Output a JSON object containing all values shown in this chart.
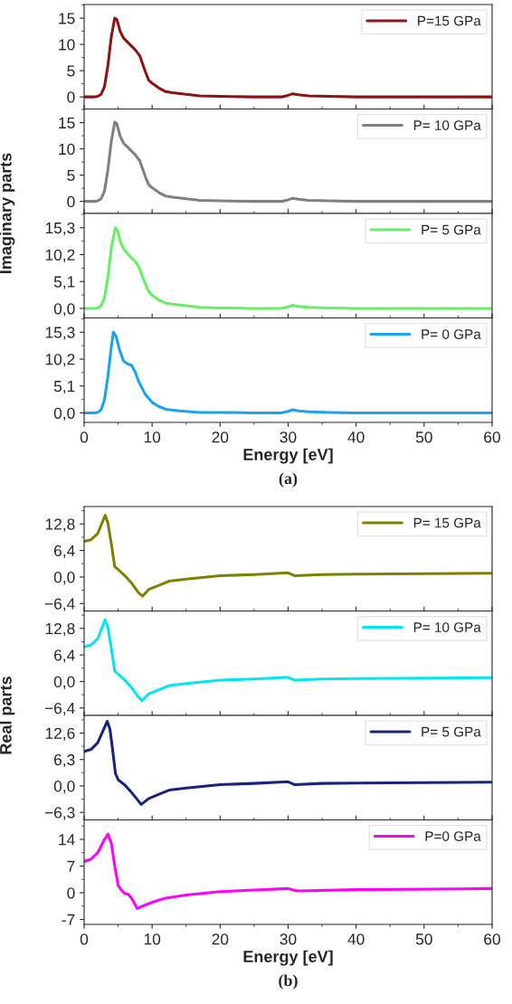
{
  "chart_data": [
    {
      "type": "line",
      "x": [
        0,
        1.5,
        2,
        2.5,
        3,
        3.5,
        4,
        4.5,
        4.8,
        5.3,
        5.8,
        6.5,
        7.5,
        8.2,
        9,
        9.5,
        10,
        11,
        12,
        13,
        15,
        17,
        20,
        25,
        29,
        30,
        30.7,
        31.5,
        33,
        36,
        40,
        60
      ],
      "series": [
        {
          "name": "P=15 GPa",
          "color": "#8b1414",
          "values": [
            0,
            0,
            0.1,
            0.5,
            2,
            6,
            11.5,
            15,
            14.8,
            12.5,
            11.2,
            10.3,
            9,
            7.8,
            4.8,
            3.2,
            2.6,
            1.7,
            1,
            0.8,
            0.5,
            0.2,
            0.1,
            0,
            0,
            0.3,
            0.6,
            0.4,
            0.2,
            0.1,
            0,
            0
          ]
        }
      ],
      "ylim": [
        -2.3,
        17.6
      ],
      "yticks": [
        0,
        5,
        10,
        15
      ],
      "xlim": [
        0,
        60
      ],
      "xticks": [
        0,
        10,
        20,
        30,
        40,
        50,
        60
      ],
      "tick_labels": "y",
      "legend": "top right",
      "grid": false
    },
    {
      "type": "line",
      "x": [
        0,
        1.5,
        2,
        2.5,
        3,
        3.5,
        4,
        4.5,
        4.8,
        5.3,
        5.8,
        6.5,
        7.5,
        8.2,
        9,
        9.5,
        10,
        11,
        12,
        13,
        15,
        17,
        20,
        25,
        29,
        30,
        30.7,
        31.5,
        33,
        36,
        40,
        60
      ],
      "series": [
        {
          "name": "P= 10 GPa",
          "color": "#808080",
          "values": [
            0,
            0,
            0.1,
            0.5,
            2,
            6,
            11.5,
            15.1,
            14.8,
            12.4,
            11.1,
            10.2,
            8.9,
            7.7,
            4.7,
            3.2,
            2.6,
            1.7,
            1,
            0.8,
            0.5,
            0.2,
            0.1,
            0,
            0,
            0.3,
            0.6,
            0.4,
            0.2,
            0.1,
            0,
            0
          ]
        }
      ],
      "ylabel": "Imaginary parts",
      "ylim": [
        -2.3,
        17.6
      ],
      "yticks": [
        0,
        5,
        10,
        15
      ],
      "xlim": [
        0,
        60
      ],
      "xticks": [
        0,
        10,
        20,
        30,
        40,
        50,
        60
      ],
      "tick_labels": "y",
      "legend": "top right",
      "grid": false
    },
    {
      "type": "line",
      "x": [
        0,
        1.5,
        2,
        2.5,
        3,
        3.5,
        4,
        4.6,
        4.9,
        5.4,
        5.9,
        6.5,
        7.5,
        8,
        9,
        9.5,
        10,
        11,
        12,
        13,
        15,
        17,
        20,
        25,
        29,
        30,
        30.7,
        31.5,
        33,
        36,
        40,
        60
      ],
      "series": [
        {
          "name": "P= 5 GPa",
          "color": "#66ee66",
          "values": [
            0,
            0,
            0.1,
            0.5,
            2,
            6,
            11.5,
            15.3,
            14.8,
            12.4,
            11.1,
            10.2,
            8.9,
            8,
            4.7,
            3.2,
            2.5,
            1.6,
            1,
            0.8,
            0.5,
            0.2,
            0.1,
            0,
            0,
            0.3,
            0.6,
            0.4,
            0.2,
            0.1,
            0,
            0
          ]
        }
      ],
      "ylim": [
        -1.8,
        18
      ],
      "yticks": [
        {
          "value": 0,
          "label": "0,0"
        },
        {
          "value": 5.1,
          "label": "5,1"
        },
        {
          "value": 10.2,
          "label": "10,2"
        },
        {
          "value": 15.3,
          "label": "15,3"
        }
      ],
      "xlim": [
        0,
        60
      ],
      "xticks": [
        0,
        10,
        20,
        30,
        40,
        50,
        60
      ],
      "tick_labels": "y",
      "legend": "top right",
      "grid": false
    },
    {
      "type": "line",
      "x": [
        0,
        1.5,
        2,
        2.5,
        3,
        3.5,
        4,
        4.3,
        4.7,
        5.2,
        5.8,
        6.5,
        7,
        7.5,
        8,
        9,
        10,
        11,
        12,
        14,
        17,
        20,
        25,
        29,
        30,
        30.7,
        31.5,
        33,
        36,
        40,
        60
      ],
      "series": [
        {
          "name": "P= 0 GPa",
          "color": "#1aa3ee",
          "values": [
            0,
            0,
            0.1,
            0.6,
            2.5,
            7,
            12.5,
            15.3,
            14.5,
            12,
            9.8,
            9.2,
            9,
            7.8,
            6,
            3.5,
            2,
            1.2,
            0.7,
            0.4,
            0.1,
            0.1,
            0,
            0,
            0.3,
            0.6,
            0.4,
            0.2,
            0.1,
            0,
            0
          ]
        }
      ],
      "xlabel": "Energy [eV]",
      "annotations": [
        "(a)"
      ],
      "ylim": [
        -1.8,
        18
      ],
      "yticks": [
        {
          "value": 0,
          "label": "0,0"
        },
        {
          "value": 5.1,
          "label": "5,1"
        },
        {
          "value": 10.2,
          "label": "10,2"
        },
        {
          "value": 15.3,
          "label": "15,3"
        }
      ],
      "xlim": [
        0,
        60
      ],
      "xticks": [
        0,
        10,
        20,
        30,
        40,
        50,
        60
      ],
      "legend": "top right",
      "grid": false
    },
    {
      "type": "line",
      "x": [
        0,
        1,
        2,
        3.1,
        3.5,
        4,
        4.5,
        5,
        6,
        7,
        8,
        8.6,
        9.5,
        11,
        12.5,
        15,
        20,
        25,
        30,
        31,
        35,
        40,
        60
      ],
      "series": [
        {
          "name": "P= 15 GPa",
          "color": "#808000",
          "values": [
            8.6,
            9,
            10.5,
            14.9,
            13,
            8,
            2.5,
            1.8,
            0.3,
            -1.5,
            -3.8,
            -4.6,
            -3,
            -2,
            -1,
            -0.5,
            0.3,
            0.6,
            1,
            0.3,
            0.6,
            0.7,
            0.9
          ]
        }
      ],
      "ylim": [
        -8.2,
        17
      ],
      "yticks": [
        {
          "value": -6.4,
          "label": "−6,4"
        },
        {
          "value": 0,
          "label": "0,0"
        },
        {
          "value": 6.4,
          "label": "6,4"
        },
        {
          "value": 12.8,
          "label": "12,8"
        }
      ],
      "xlim": [
        0,
        60
      ],
      "xticks": [
        0,
        10,
        20,
        30,
        40,
        50,
        60
      ],
      "tick_labels": "y",
      "legend": "top right",
      "grid": false
    },
    {
      "type": "line",
      "x": [
        0,
        1,
        2,
        3.1,
        3.5,
        4,
        4.5,
        5,
        6,
        7,
        8,
        8.5,
        9.5,
        11,
        12.5,
        15,
        20,
        25,
        30,
        31,
        35,
        40,
        60
      ],
      "series": [
        {
          "name": "P= 10 GPa",
          "color": "#00e5ee",
          "values": [
            8.3,
            8.8,
            10.3,
            14.9,
            13,
            8,
            2.5,
            1.8,
            0.3,
            -1.5,
            -3.8,
            -4.6,
            -3,
            -2,
            -1,
            -0.5,
            0.3,
            0.6,
            1,
            0.3,
            0.6,
            0.7,
            0.9
          ]
        }
      ],
      "ylabel": "Real parts",
      "ylim": [
        -8.2,
        17
      ],
      "yticks": [
        {
          "value": -6.4,
          "label": "−6,4"
        },
        {
          "value": 0,
          "label": "0,0"
        },
        {
          "value": 6.4,
          "label": "6,4"
        },
        {
          "value": 12.8,
          "label": "12,8"
        }
      ],
      "xlim": [
        0,
        60
      ],
      "xticks": [
        0,
        10,
        20,
        30,
        40,
        50,
        60
      ],
      "tick_labels": "y",
      "legend": "top right",
      "grid": false
    },
    {
      "type": "line",
      "x": [
        0,
        1,
        2,
        3.4,
        3.8,
        4.2,
        4.6,
        5,
        6,
        7,
        8,
        8.4,
        9.5,
        11,
        12.5,
        15,
        20,
        25,
        30,
        31,
        35,
        40,
        60
      ],
      "series": [
        {
          "name": "P= 5 GPa",
          "color": "#1a237e",
          "values": [
            8.2,
            8.7,
            10.3,
            15.4,
            13.5,
            8.5,
            3,
            1.5,
            0.2,
            -1.6,
            -3.6,
            -4.4,
            -3,
            -2,
            -1,
            -0.5,
            0.3,
            0.6,
            1,
            0.3,
            0.6,
            0.7,
            0.9
          ]
        }
      ],
      "ylim": [
        -8.1,
        16.8
      ],
      "yticks": [
        {
          "value": -6.3,
          "label": "−6,3"
        },
        {
          "value": 0,
          "label": "0,0"
        },
        {
          "value": 6.3,
          "label": "6,3"
        },
        {
          "value": 12.6,
          "label": "12,6"
        }
      ],
      "xlim": [
        0,
        60
      ],
      "xticks": [
        0,
        10,
        20,
        30,
        40,
        50,
        60
      ],
      "tick_labels": "y",
      "legend": "top right",
      "grid": false
    },
    {
      "type": "line",
      "x": [
        0,
        1,
        2,
        3,
        3.5,
        4,
        4.5,
        5,
        5.5,
        6,
        6.5,
        7,
        7.8,
        9,
        10,
        12,
        15,
        20,
        25,
        30,
        31.3,
        40,
        60
      ],
      "series": [
        {
          "name": "P=0 GPa",
          "color": "#ff00ff",
          "values": [
            8.2,
            8.8,
            10.5,
            14,
            15.4,
            13,
            7,
            2,
            0.6,
            -0.2,
            -0.4,
            -1.5,
            -4.1,
            -3.2,
            -2.5,
            -1.4,
            -0.6,
            0.3,
            0.7,
            1.1,
            0.5,
            0.8,
            1.1
          ]
        }
      ],
      "xlabel": "Energy [eV]",
      "annotations": [
        "(b)"
      ],
      "ylim": [
        -8.3,
        19.1
      ],
      "yticks": [
        -7,
        0,
        7,
        14
      ],
      "xlim": [
        0,
        60
      ],
      "xticks": [
        0,
        10,
        20,
        30,
        40,
        50,
        60
      ],
      "legend": "top right",
      "grid": false
    }
  ]
}
